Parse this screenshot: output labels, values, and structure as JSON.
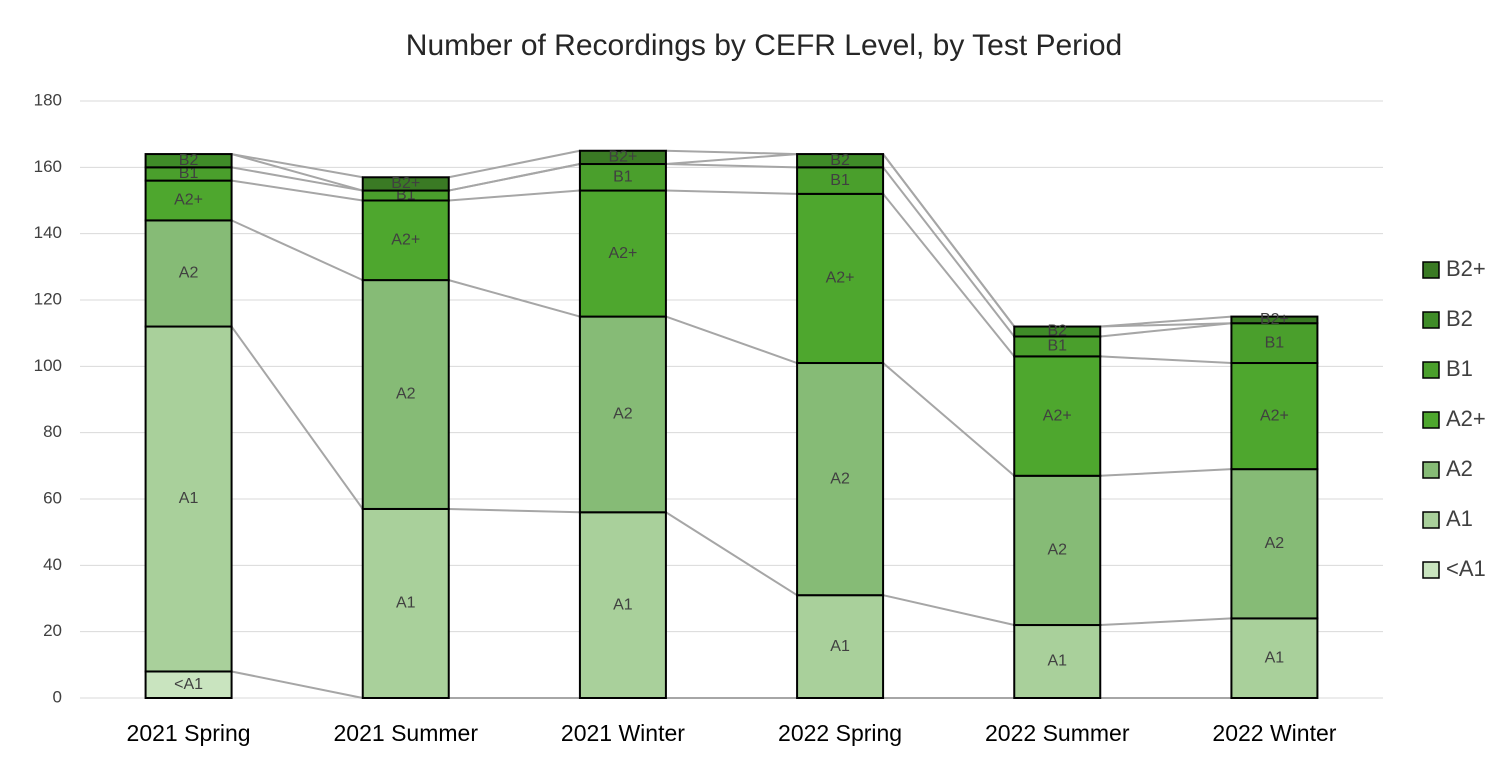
{
  "chart_data": {
    "type": "stacked_bar",
    "title": "Number of Recordings by CEFR Level, by Test Period",
    "categories": [
      "2021 Spring",
      "2021 Summer",
      "2021 Winter",
      "2022 Spring",
      "2022 Summer",
      "2022 Winter"
    ],
    "series": [
      {
        "name": "<A1",
        "color": "#c9e4bf",
        "values": [
          8,
          0,
          0,
          0,
          0,
          0
        ]
      },
      {
        "name": "A1",
        "color": "#a9d09b",
        "values": [
          104,
          57,
          56,
          31,
          22,
          24
        ]
      },
      {
        "name": "A2",
        "color": "#86bb76",
        "values": [
          32,
          69,
          59,
          70,
          45,
          45
        ]
      },
      {
        "name": "A2+",
        "color": "#4ea72e",
        "values": [
          12,
          24,
          38,
          51,
          36,
          32
        ]
      },
      {
        "name": "B1",
        "color": "#4a9f2c",
        "values": [
          4,
          3,
          8,
          8,
          6,
          12
        ]
      },
      {
        "name": "B2",
        "color": "#3f8c28",
        "values": [
          4,
          0,
          0,
          4,
          3,
          0
        ]
      },
      {
        "name": "B2+",
        "color": "#3a7a24",
        "values": [
          0,
          4,
          4,
          0,
          0,
          2
        ]
      }
    ],
    "ylim": [
      0,
      180
    ],
    "yticks": [
      0,
      20,
      40,
      60,
      80,
      100,
      120,
      140,
      160,
      180
    ],
    "grid": true,
    "legend": "right"
  }
}
